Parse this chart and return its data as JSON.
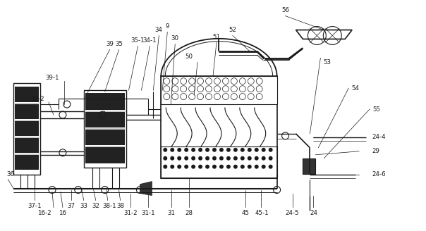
{
  "bg_color": "#ffffff",
  "line_color": "#1a1a1a",
  "figsize": [
    6.04,
    3.28
  ],
  "dpi": 100,
  "xlim": [
    0,
    604
  ],
  "ylim": [
    0,
    328
  ]
}
